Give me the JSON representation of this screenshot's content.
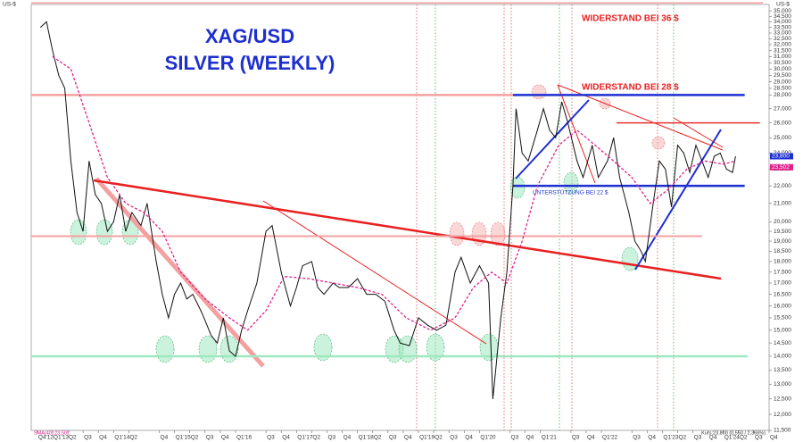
{
  "chart_data": {
    "type": "line",
    "title": "XAG/USD",
    "subtitle": "SILVER (WEEKLY)",
    "y_unit": "US-$",
    "annotations": [
      "WIDERSTAND BEI 36 $",
      "WIDERSTAND BEI 28 $",
      "UNTERSTÜTZUNG BEI 22 $"
    ],
    "indicator_label": "SMA(40):23,502",
    "quote_label": "Kurs:23,800 (0,550 / 2,366%)",
    "last_prices": [
      {
        "value": 23.8,
        "label": "23,800",
        "color": "#1e2fd0"
      },
      {
        "value": 23.502,
        "label": "23,502",
        "color": "#e0208a"
      }
    ],
    "log_scale": true,
    "xlim": [
      2012.65,
      2024.75
    ],
    "ylim": [
      11.5,
      35.6
    ],
    "series": [
      {
        "color": "#111111",
        "style": "solid",
        "x": [
          2012.8,
          2012.9,
          2013.0,
          2013.1,
          2013.2,
          2013.3,
          2013.4,
          2013.5,
          2013.6,
          2013.7,
          2013.8,
          2013.9,
          2014.0,
          2014.1,
          2014.2,
          2014.3,
          2014.45,
          2014.55,
          2014.7,
          2014.8,
          2014.9,
          2015.0,
          2015.1,
          2015.2,
          2015.3,
          2015.45,
          2015.6,
          2015.7,
          2015.8,
          2015.9,
          2016.0,
          2016.1,
          2016.2,
          2016.35,
          2016.5,
          2016.6,
          2016.75,
          2016.9,
          2017.0,
          2017.1,
          2017.25,
          2017.35,
          2017.45,
          2017.6,
          2017.7,
          2017.85,
          2018.0,
          2018.15,
          2018.3,
          2018.45,
          2018.6,
          2018.7,
          2018.85,
          2019.0,
          2019.15,
          2019.3,
          2019.45,
          2019.6,
          2019.7,
          2019.85,
          2020.0,
          2020.15,
          2020.22,
          2020.35,
          2020.45,
          2020.55,
          2020.6,
          2020.7,
          2020.8,
          2020.95,
          2021.05,
          2021.15,
          2021.25,
          2021.35,
          2021.45,
          2021.6,
          2021.7,
          2021.85,
          2021.95,
          2022.1,
          2022.2,
          2022.3,
          2022.45,
          2022.55,
          2022.65,
          2022.72,
          2022.85,
          2022.95,
          2023.05,
          2023.15,
          2023.25,
          2023.35,
          2023.45,
          2023.55,
          2023.65,
          2023.75,
          2023.85,
          2023.95,
          2024.05,
          2024.15,
          2024.2
        ],
        "values": [
          33.5,
          34,
          31.5,
          29.5,
          28.5,
          23.5,
          20.5,
          19.5,
          23.5,
          21.5,
          21,
          19.5,
          20,
          21.5,
          19.5,
          20.5,
          19.8,
          21,
          18,
          16.5,
          15.5,
          16.5,
          17,
          16.3,
          16.5,
          15.7,
          14.8,
          14.5,
          15.5,
          14.2,
          14,
          15,
          15.8,
          17,
          19.5,
          19.8,
          17.5,
          16,
          16.8,
          17.8,
          18,
          16.8,
          16.5,
          17,
          16.8,
          16.8,
          17.2,
          16.5,
          16.5,
          16.2,
          15,
          14.5,
          14.4,
          15.5,
          15.2,
          15,
          15.2,
          17.5,
          18.2,
          17,
          17.8,
          17,
          12.5,
          15.5,
          17.5,
          22,
          27,
          24,
          23.5,
          25.5,
          27,
          25.5,
          25,
          27.5,
          26,
          23.5,
          22.5,
          24.5,
          22.5,
          23.5,
          25,
          22.5,
          20.5,
          19,
          18.5,
          18,
          21,
          23.5,
          23,
          20.8,
          24.5,
          24,
          22.8,
          24.5,
          23.5,
          22.5,
          23.8,
          24,
          23,
          22.8,
          23.8
        ]
      },
      {
        "color": "#e0208a",
        "style": "dashed",
        "x": [
          2013.0,
          2013.3,
          2013.6,
          2013.9,
          2014.2,
          2014.5,
          2014.8,
          2015.1,
          2015.5,
          2015.9,
          2016.2,
          2016.5,
          2016.8,
          2017.2,
          2017.6,
          2018.0,
          2018.4,
          2018.8,
          2019.2,
          2019.6,
          2019.9,
          2020.2,
          2020.45,
          2020.7,
          2020.95,
          2021.3,
          2021.6,
          2021.9,
          2022.2,
          2022.5,
          2022.8,
          2023.1,
          2023.4,
          2023.7,
          2024.0,
          2024.2
        ],
        "values": [
          31,
          30,
          26,
          22.5,
          21,
          20.5,
          19.5,
          17.5,
          16.3,
          15.5,
          15,
          15.8,
          17.3,
          17.2,
          17,
          16.8,
          16.5,
          15.5,
          15,
          15.5,
          16.8,
          17.5,
          17,
          19,
          22,
          24.5,
          25.5,
          24.5,
          23.5,
          22.5,
          21,
          21.8,
          23,
          23.5,
          23.3,
          23.5
        ]
      }
    ],
    "levels": [
      {
        "value": 35.75,
        "color": "#f4a0a0",
        "from": 2012.65,
        "to": 2024.65,
        "width": 1.5
      },
      {
        "value": 28,
        "color": "#f4a0a0",
        "from": 2012.65,
        "to": 2020.55,
        "width": 2.5
      },
      {
        "value": 28,
        "color": "#1e2fd0",
        "from": 2020.55,
        "to": 2024.35,
        "width": 2.5
      },
      {
        "value": 22,
        "color": "#1e2fd0",
        "from": 2020.55,
        "to": 2024.35,
        "width": 2.5
      },
      {
        "value": 26,
        "color": "#e83030",
        "from": 2022.25,
        "to": 2024.6,
        "width": 1.5
      },
      {
        "value": 19.25,
        "color": "#f4a0a0",
        "from": 2012.65,
        "to": 2023.65,
        "width": 2
      },
      {
        "value": 14,
        "color": "#9ee8c0",
        "from": 2012.65,
        "to": 2024.4,
        "width": 2.5
      }
    ],
    "yticks": [
      {
        "value": 35,
        "label": "35,000"
      },
      {
        "value": 34.5,
        "label": "34,500"
      },
      {
        "value": 34,
        "label": "34,000"
      },
      {
        "value": 33.5,
        "label": "33,500"
      },
      {
        "value": 33,
        "label": "33,000"
      },
      {
        "value": 32.5,
        "label": "32,500"
      },
      {
        "value": 32,
        "label": "32,000"
      },
      {
        "value": 31.5,
        "label": "31,500"
      },
      {
        "value": 31,
        "label": "31,000"
      },
      {
        "value": 30.5,
        "label": "30,500"
      },
      {
        "value": 30,
        "label": "30,000"
      },
      {
        "value": 29.5,
        "label": "29,500"
      },
      {
        "value": 29,
        "label": "29,000"
      },
      {
        "value": 28.5,
        "label": "28,500"
      },
      {
        "value": 28,
        "label": "28,000"
      },
      {
        "value": 27,
        "label": "27,000"
      },
      {
        "value": 26,
        "label": "26,000"
      },
      {
        "value": 25,
        "label": "25,000"
      },
      {
        "value": 24,
        "label": "24,000"
      },
      {
        "value": 23,
        "label": "23,000"
      },
      {
        "value": 22,
        "label": "22,000"
      },
      {
        "value": 21,
        "label": "21,000"
      },
      {
        "value": 20,
        "label": "20,000"
      },
      {
        "value": 19.5,
        "label": "19,500"
      },
      {
        "value": 19,
        "label": "19,000"
      },
      {
        "value": 18.5,
        "label": "18,500"
      },
      {
        "value": 18,
        "label": "18,000"
      },
      {
        "value": 17.5,
        "label": "17,500"
      },
      {
        "value": 17,
        "label": "17,000"
      },
      {
        "value": 16.5,
        "label": "16,500"
      },
      {
        "value": 16,
        "label": "16,000"
      },
      {
        "value": 15.5,
        "label": "15,500"
      },
      {
        "value": 15,
        "label": "15,000"
      },
      {
        "value": 14.5,
        "label": "14,500"
      },
      {
        "value": 14,
        "label": "14,000"
      },
      {
        "value": 13.5,
        "label": "13,500"
      },
      {
        "value": 13,
        "label": "13,000"
      },
      {
        "value": 12.5,
        "label": "12,500"
      },
      {
        "value": 12,
        "label": "12,000"
      },
      {
        "value": 11.5,
        "label": "11,500"
      }
    ],
    "xticks": [
      {
        "value": 2012.75,
        "label": "Q4'12"
      },
      {
        "value": 2013.0,
        "label": "Q1'13"
      },
      {
        "value": 2013.25,
        "label": "Q2"
      },
      {
        "value": 2013.5,
        "label": "Q3"
      },
      {
        "value": 2013.75,
        "label": "Q4"
      },
      {
        "value": 2014.0,
        "label": "Q1'14"
      },
      {
        "value": 2014.25,
        "label": "Q2"
      },
      {
        "value": 2014.75,
        "label": "Q4"
      },
      {
        "value": 2015.0,
        "label": "Q1'15"
      },
      {
        "value": 2015.25,
        "label": "Q2"
      },
      {
        "value": 2015.5,
        "label": "Q3"
      },
      {
        "value": 2015.75,
        "label": "Q4"
      },
      {
        "value": 2016.0,
        "label": "Q1'16"
      },
      {
        "value": 2016.5,
        "label": "Q3"
      },
      {
        "value": 2016.75,
        "label": "Q4"
      },
      {
        "value": 2017.0,
        "label": "Q1'17"
      },
      {
        "value": 2017.25,
        "label": "Q2"
      },
      {
        "value": 2017.5,
        "label": "Q3"
      },
      {
        "value": 2017.75,
        "label": "Q4"
      },
      {
        "value": 2018.0,
        "label": "Q1'18"
      },
      {
        "value": 2018.25,
        "label": "Q2"
      },
      {
        "value": 2018.5,
        "label": "Q3"
      },
      {
        "value": 2018.75,
        "label": "Q4"
      },
      {
        "value": 2019.0,
        "label": "Q1'19"
      },
      {
        "value": 2019.25,
        "label": "Q2"
      },
      {
        "value": 2019.5,
        "label": "Q3"
      },
      {
        "value": 2019.75,
        "label": "Q4"
      },
      {
        "value": 2020.0,
        "label": "Q1'20"
      },
      {
        "value": 2020.5,
        "label": "Q3"
      },
      {
        "value": 2020.75,
        "label": "Q4"
      },
      {
        "value": 2021.0,
        "label": "Q1'21"
      },
      {
        "value": 2021.5,
        "label": "Q3"
      },
      {
        "value": 2021.75,
        "label": "Q4"
      },
      {
        "value": 2022.0,
        "label": "Q1'22"
      },
      {
        "value": 2022.5,
        "label": "Q3"
      },
      {
        "value": 2022.75,
        "label": "Q4"
      },
      {
        "value": 2023.0,
        "label": "Q1'23"
      },
      {
        "value": 2023.25,
        "label": "Q2"
      },
      {
        "value": 2023.5,
        "label": "Q3"
      },
      {
        "value": 2023.75,
        "label": "Q4"
      },
      {
        "value": 2024.0,
        "label": "Q1'24"
      },
      {
        "value": 2024.25,
        "label": "Q2"
      },
      {
        "value": 2024.5,
        "label": "Q3"
      },
      {
        "value": 2024.75,
        "label": "Q4"
      }
    ]
  }
}
